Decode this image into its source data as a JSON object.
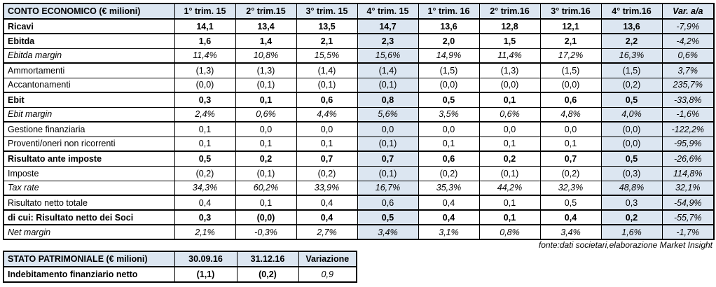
{
  "income_statement": {
    "title": "CONTO ECONOMICO (€ milioni)",
    "columns": [
      "1° trim. 15",
      "2° trim.15",
      "3° trim. 15",
      "4° trim. 15",
      "1° trim. 16",
      "2° trim.16",
      "3° trim.16",
      "4° trim.16",
      "Var. a/a"
    ],
    "highlight_columns": [
      3,
      7,
      8
    ],
    "rows": [
      {
        "label": "Ricavi",
        "style": "bold",
        "group_end": true,
        "values": [
          "14,1",
          "13,4",
          "13,5",
          "14,7",
          "13,6",
          "12,8",
          "12,1",
          "13,6",
          "-7,9%"
        ]
      },
      {
        "label": "Ebitda",
        "style": "bold",
        "group_end": false,
        "values": [
          "1,6",
          "1,4",
          "2,1",
          "2,3",
          "2,0",
          "1,5",
          "2,1",
          "2,2",
          "-4,2%"
        ]
      },
      {
        "label": "Ebitda margin",
        "style": "italic",
        "group_end": true,
        "values": [
          "11,4%",
          "10,8%",
          "15,5%",
          "15,6%",
          "14,9%",
          "11,4%",
          "17,2%",
          "16,3%",
          "0,6%"
        ]
      },
      {
        "label": "Ammortamenti",
        "style": "normal",
        "group_end": false,
        "values": [
          "(1,3)",
          "(1,3)",
          "(1,4)",
          "(1,4)",
          "(1,5)",
          "(1,3)",
          "(1,5)",
          "(1,5)",
          "3,7%"
        ]
      },
      {
        "label": "Accantonamenti",
        "style": "normal",
        "group_end": true,
        "values": [
          "(0,0)",
          "(0,1)",
          "(0,1)",
          "(0,1)",
          "(0,0)",
          "(0,0)",
          "(0,0)",
          "(0,2)",
          "235,7%"
        ]
      },
      {
        "label": "Ebit",
        "style": "bold",
        "group_end": false,
        "values": [
          "0,3",
          "0,1",
          "0,6",
          "0,8",
          "0,5",
          "0,1",
          "0,6",
          "0,5",
          "-33,8%"
        ]
      },
      {
        "label": "Ebit margin",
        "style": "italic",
        "group_end": true,
        "values": [
          "2,4%",
          "0,6%",
          "4,4%",
          "5,6%",
          "3,5%",
          "0,6%",
          "4,8%",
          "4,0%",
          "-1,6%"
        ]
      },
      {
        "label": "Gestione finanziaria",
        "style": "normal",
        "group_end": false,
        "values": [
          "0,1",
          "0,0",
          "0,0",
          "0,0",
          "0,0",
          "0,0",
          "0,0",
          "(0,0)",
          "-122,2%"
        ]
      },
      {
        "label": "Proventi/oneri non ricorrenti",
        "style": "normal",
        "group_end": true,
        "values": [
          "0,1",
          "0,1",
          "0,1",
          "(0,1)",
          "0,1",
          "0,1",
          "0,1",
          "(0,0)",
          "-95,9%"
        ]
      },
      {
        "label": "Risultato ante imposte",
        "style": "bold",
        "group_end": false,
        "values": [
          "0,5",
          "0,2",
          "0,7",
          "0,7",
          "0,6",
          "0,2",
          "0,7",
          "0,5",
          "-26,6%"
        ]
      },
      {
        "label": "Imposte",
        "style": "normal",
        "group_end": false,
        "values": [
          "(0,2)",
          "(0,1)",
          "(0,2)",
          "(0,1)",
          "(0,2)",
          "(0,1)",
          "(0,2)",
          "(0,3)",
          "114,8%"
        ]
      },
      {
        "label": "Tax rate",
        "style": "italic",
        "group_end": true,
        "values": [
          "34,3%",
          "60,2%",
          "33,9%",
          "16,7%",
          "35,3%",
          "44,2%",
          "32,3%",
          "48,8%",
          "32,1%"
        ]
      },
      {
        "label": "Risultato netto totale",
        "style": "normal",
        "group_end": true,
        "values": [
          "0,4",
          "0,1",
          "0,4",
          "0,6",
          "0,4",
          "0,1",
          "0,5",
          "0,3",
          "-54,9%"
        ]
      },
      {
        "label": "di cui: Risultato netto dei Soci",
        "style": "bold",
        "group_end": true,
        "values": [
          "0,3",
          "(0,0)",
          "0,4",
          "0,5",
          "0,4",
          "0,1",
          "0,4",
          "0,2",
          "-55,7%"
        ]
      },
      {
        "label": "Net margin",
        "style": "italic",
        "group_end": true,
        "values": [
          "2,1%",
          "-0,3%",
          "2,7%",
          "3,4%",
          "3,1%",
          "0,8%",
          "3,4%",
          "1,6%",
          "-1,7%"
        ]
      }
    ]
  },
  "source_note": "fonte:dati societari,elaborazione Market Insight",
  "balance_sheet": {
    "title": "STATO PATRIMONIALE (€ milioni)",
    "columns": [
      "30.09.16",
      "31.12.16",
      "Variazione"
    ],
    "rows": [
      {
        "label": "Indebitamento finanziario netto",
        "label_style": "bold",
        "values": [
          "(1,1)",
          "(0,2)",
          "0,9"
        ],
        "value_styles": [
          "bold",
          "bold",
          "italic"
        ]
      }
    ]
  },
  "colors": {
    "highlight_bg": "#DCE6F1",
    "border": "#000000",
    "text": "#000000",
    "background": "#FFFFFF"
  }
}
